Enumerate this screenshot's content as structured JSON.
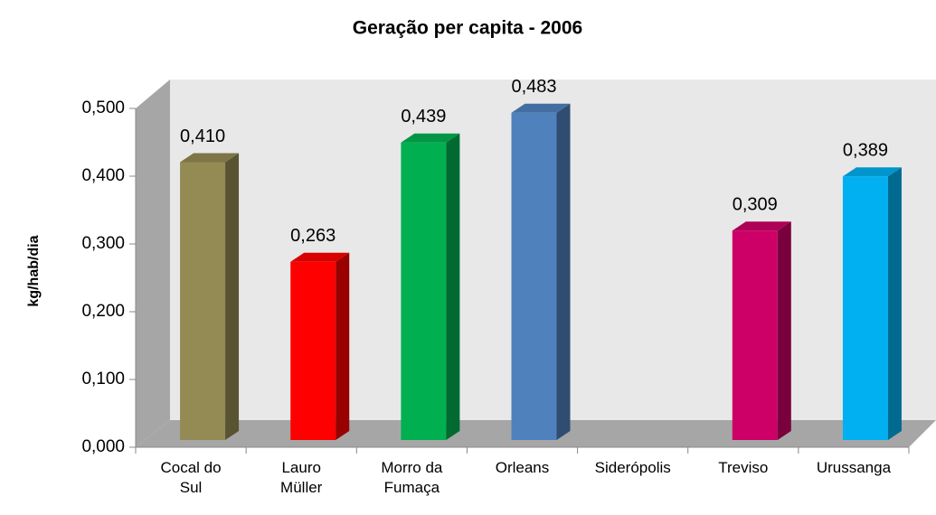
{
  "chart_data": {
    "type": "bar3d",
    "title": "Geração per capita - 2006",
    "ylabel": "kg/hab/dia",
    "categories": [
      "Cocal do Sul",
      "Lauro Müller",
      "Morro da Fumaça",
      "Orleans",
      "Siderópolis",
      "Treviso",
      "Urussanga"
    ],
    "values": [
      0.41,
      0.263,
      0.439,
      0.483,
      null,
      0.309,
      0.389
    ],
    "value_labels": [
      "0,410",
      "0,263",
      "0,439",
      "0,483",
      null,
      "0,309",
      "0,389"
    ],
    "colors": [
      "#948a54",
      "#ff0000",
      "#00b050",
      "#4f81bd",
      null,
      "#cc0066",
      "#00b0f0"
    ],
    "ylim": [
      0,
      0.5
    ],
    "yticks": [
      {
        "value": 0,
        "label": "0,000"
      },
      {
        "value": 0.1,
        "label": "0,100"
      },
      {
        "value": 0.2,
        "label": "0,200"
      },
      {
        "value": 0.3,
        "label": "0,300"
      },
      {
        "value": 0.4,
        "label": "0,400"
      },
      {
        "value": 0.5,
        "label": "0,500"
      }
    ]
  }
}
